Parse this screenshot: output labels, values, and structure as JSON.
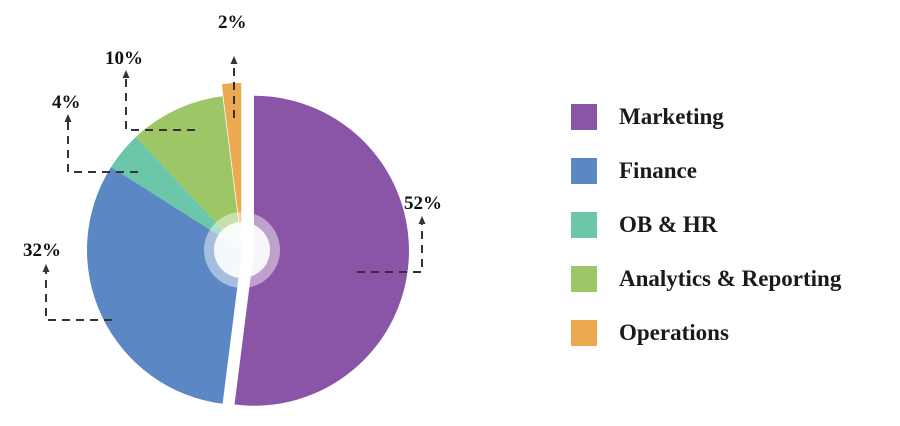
{
  "chart_data": {
    "type": "pie",
    "title": "",
    "legend_position": "right",
    "slices": [
      {
        "name": "Marketing",
        "value": 52,
        "label": "52%",
        "color": "#8a55a6",
        "exploded": true
      },
      {
        "name": "Finance",
        "value": 32,
        "label": "32%",
        "color": "#5b87c5",
        "exploded": false
      },
      {
        "name": "OB & HR",
        "value": 4,
        "label": "4%",
        "color": "#6cc6a9",
        "exploded": false
      },
      {
        "name": "Analytics & Reporting",
        "value": 10,
        "label": "10%",
        "color": "#9dc666",
        "exploded": false
      },
      {
        "name": "Operations",
        "value": 2,
        "label": "2%",
        "color": "#eda94f",
        "exploded": true
      }
    ]
  }
}
